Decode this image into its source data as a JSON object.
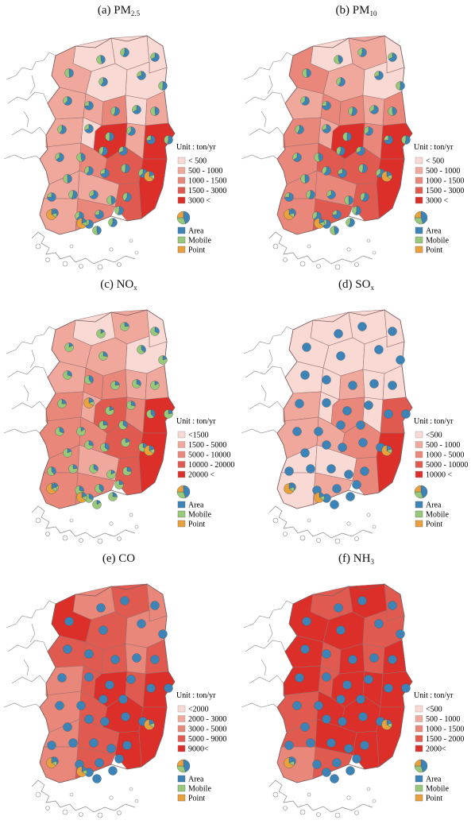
{
  "colors": {
    "class_1": "#f9d9d4",
    "class_2": "#f0a89c",
    "class_3": "#e9877a",
    "class_4": "#e05a4f",
    "class_5": "#dc2f2a",
    "area": "#3c84b7",
    "mobile": "#98c97a",
    "point": "#e9a13b",
    "border": "#9a6f6f",
    "outline": "#888888"
  },
  "panels": [
    {
      "id": "a",
      "title": "(a) PM",
      "title_sub": "2.5",
      "unit": "Unit : ton/yr",
      "classes": [
        "< 500",
        "500 - 1000",
        "1000 - 1500",
        "1500 - 3000",
        "3000 <"
      ],
      "sources": [
        "Area",
        "Mobile",
        "Point"
      ],
      "region_levels": [
        1,
        1,
        1,
        2,
        1,
        1,
        2,
        2,
        3,
        1,
        2,
        5,
        2,
        5,
        1,
        2,
        2,
        3,
        4,
        2,
        2,
        5,
        4,
        3,
        2
      ],
      "dominant_source": "mixed"
    },
    {
      "id": "b",
      "title": "(b) PM",
      "title_sub": "10",
      "unit": "Unit : ton/yr",
      "classes": [
        "< 500",
        "500 - 1000",
        "1000 - 1500",
        "1500 - 3000",
        "3000 <"
      ],
      "sources": [
        "Area",
        "Mobile",
        "Point"
      ],
      "region_levels": [
        1,
        2,
        1,
        3,
        2,
        1,
        2,
        3,
        3,
        2,
        3,
        5,
        3,
        5,
        2,
        3,
        3,
        4,
        4,
        3,
        3,
        5,
        4,
        4,
        3
      ],
      "dominant_source": "mixed"
    },
    {
      "id": "c",
      "title": "(c) NO",
      "title_sub": "x",
      "unit": "Unit : ton/yr",
      "classes": [
        "<1500",
        "1500 - 5000",
        "5000 - 10000",
        "10000 - 20000",
        "20000 <"
      ],
      "sources": [
        "Area",
        "Mobile",
        "Point"
      ],
      "region_levels": [
        1,
        2,
        1,
        2,
        2,
        1,
        2,
        3,
        3,
        2,
        2,
        5,
        3,
        4,
        2,
        3,
        3,
        3,
        4,
        3,
        2,
        5,
        4,
        3,
        3
      ],
      "dominant_source": "mobile"
    },
    {
      "id": "d",
      "title": "(d) SO",
      "title_sub": "x",
      "unit": "Unit : ton/yr",
      "classes": [
        "<500",
        "500 - 1000",
        "1000 - 5000",
        "5000 - 10000",
        "10000 <"
      ],
      "sources": [
        "Area",
        "Mobile",
        "Point"
      ],
      "region_levels": [
        1,
        1,
        1,
        1,
        1,
        1,
        1,
        1,
        2,
        1,
        1,
        4,
        2,
        3,
        1,
        1,
        2,
        2,
        3,
        1,
        1,
        5,
        3,
        2,
        1
      ],
      "dominant_source": "area"
    },
    {
      "id": "e",
      "title": "(e) CO",
      "title_sub": "",
      "unit": "Unit : ton/yr",
      "classes": [
        "<2000",
        "2000 - 3000",
        "3000 - 5000",
        "5000 - 9000",
        "9000<"
      ],
      "sources": [
        "Area",
        "Mobile",
        "Point"
      ],
      "region_levels": [
        3,
        4,
        3,
        5,
        4,
        3,
        4,
        4,
        4,
        3,
        4,
        5,
        3,
        5,
        4,
        4,
        3,
        4,
        5,
        3,
        4,
        5,
        5,
        4,
        3
      ],
      "dominant_source": "area"
    },
    {
      "id": "f",
      "title": "(f) NH",
      "title_sub": "3",
      "unit": "Unit : ton/yr",
      "classes": [
        "<500",
        "500 - 1000",
        "1000 - 1500",
        "1500 - 2000",
        "2000<"
      ],
      "sources": [
        "Area",
        "Mobile",
        "Point"
      ],
      "region_levels": [
        4,
        5,
        4,
        5,
        5,
        4,
        5,
        4,
        5,
        4,
        5,
        5,
        5,
        5,
        4,
        5,
        4,
        5,
        5,
        4,
        5,
        5,
        5,
        4,
        3
      ],
      "dominant_source": "area"
    }
  ]
}
